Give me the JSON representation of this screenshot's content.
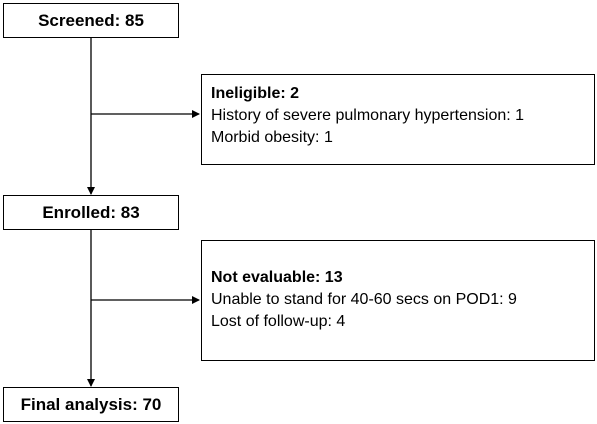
{
  "flow": {
    "screened": "Screened: 85",
    "ineligible": {
      "heading": "Ineligible: 2",
      "reasons": [
        "History of severe pulmonary hypertension: 1",
        "Morbid obesity: 1"
      ]
    },
    "enrolled": "Enrolled: 83",
    "not_evaluable": {
      "heading": "Not evaluable: 13",
      "reasons": [
        "Unable to stand for 40-60 secs on POD1: 9",
        "Lost of follow-up: 4"
      ]
    },
    "final": "Final analysis: 70"
  },
  "colors": {
    "line": "#000000",
    "box_border": "#000000",
    "background": "#ffffff"
  }
}
